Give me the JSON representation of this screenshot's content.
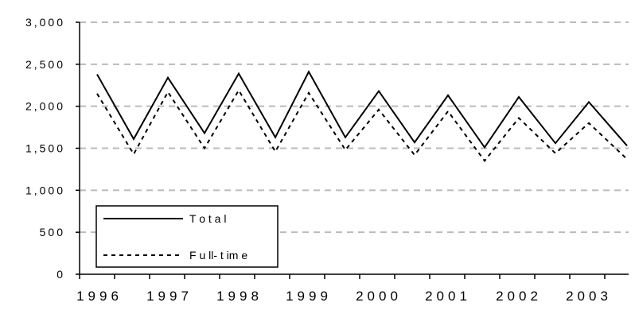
{
  "chart_data": {
    "type": "line",
    "x_label_positions": [
      "1996",
      "1997",
      "1998",
      "1999",
      "2000",
      "2001",
      "2002",
      "2003"
    ],
    "ylim": [
      0,
      3000
    ],
    "y_ticks": [
      "0",
      "500",
      "1,000",
      "1,500",
      "2,000",
      "2,500",
      "3,000"
    ],
    "y_tick_values": [
      0,
      500,
      1000,
      1500,
      2000,
      2500,
      3000
    ],
    "grid": "horizontal-dashed",
    "legend_position": "bottom-left",
    "series": [
      {
        "name": "Total",
        "style": "solid",
        "color": "#000000",
        "values": [
          2380,
          1610,
          2340,
          1680,
          2390,
          1630,
          2410,
          1630,
          2180,
          1570,
          2130,
          1510,
          2110,
          1560,
          2050,
          1530
        ]
      },
      {
        "name": "Full-time",
        "style": "dashed",
        "color": "#000000",
        "values": [
          2150,
          1430,
          2170,
          1500,
          2190,
          1460,
          2160,
          1480,
          1960,
          1420,
          1940,
          1350,
          1860,
          1440,
          1800,
          1370
        ]
      }
    ]
  },
  "legend": {
    "total_label": "T o t a l",
    "fulltime_label": "F u ll- t im e"
  }
}
